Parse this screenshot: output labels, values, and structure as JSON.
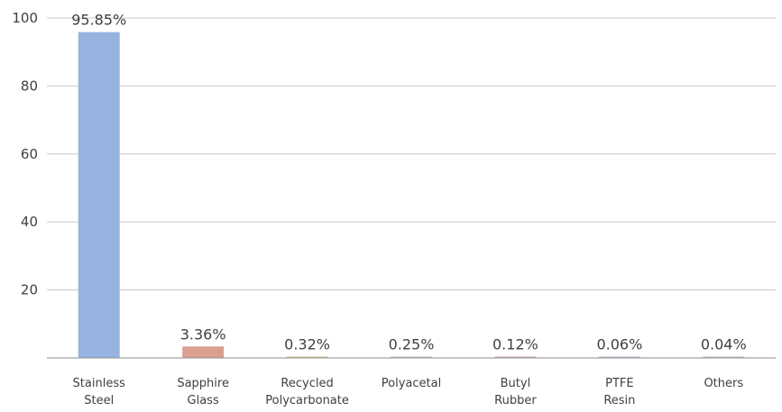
{
  "chart_data": {
    "type": "bar",
    "title": "",
    "xlabel": "",
    "ylabel": "",
    "ylim": [
      0,
      100
    ],
    "yticks": [
      "20",
      "40",
      "60",
      "80",
      "100"
    ],
    "grid": true,
    "legend": "none",
    "categories": [
      [
        "Stainless",
        "Steel"
      ],
      [
        "Sapphire",
        "Glass"
      ],
      [
        "Recycled",
        "Polycarbonate"
      ],
      [
        "Polyacetal"
      ],
      [
        "Butyl",
        "Rubber"
      ],
      [
        "PTFE",
        "Resin"
      ],
      [
        "Others"
      ]
    ],
    "values": [
      95.85,
      3.36,
      0.32,
      0.25,
      0.12,
      0.06,
      0.04
    ],
    "data_labels": [
      "95.85%",
      "3.36%",
      "0.32%",
      "0.25%",
      "0.12%",
      "0.06%",
      "0.04%"
    ],
    "colors": [
      "#95B3DE",
      "#D9A090",
      "#D8C79A",
      "#C9C9C9",
      "#D9AEB0",
      "#B5C4D8",
      "#C4C4C4"
    ],
    "gridline_color": "#C8C8C8",
    "axis_color": "#8C8C8C"
  }
}
